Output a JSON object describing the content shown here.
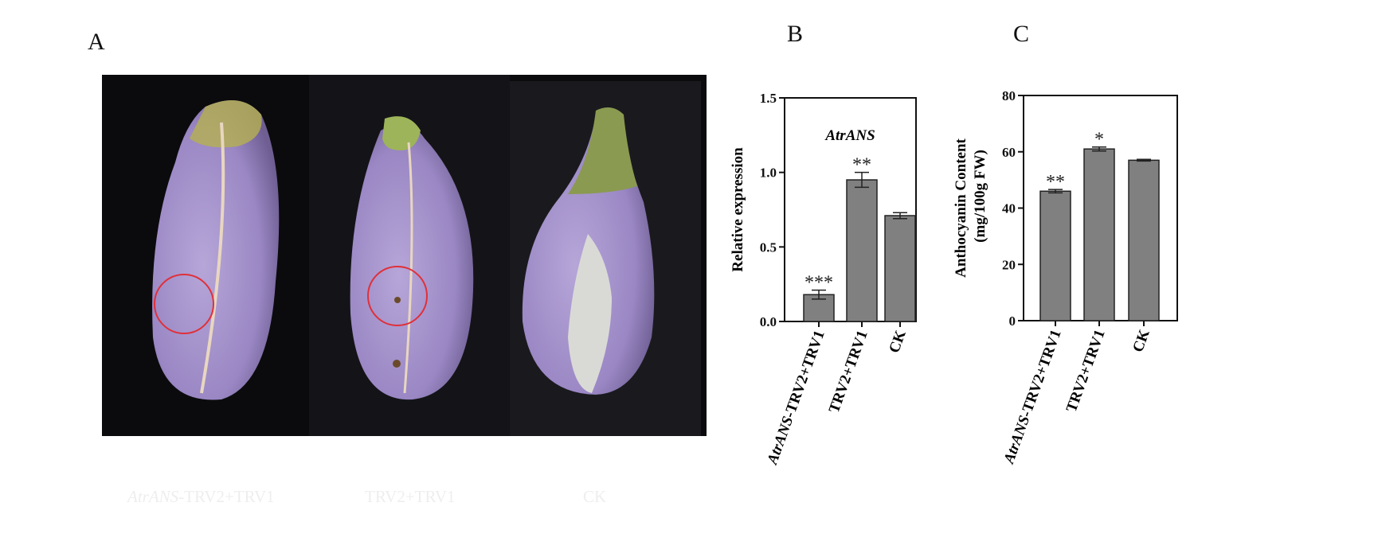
{
  "panels": {
    "a": "A",
    "b": "B",
    "c": "C"
  },
  "photo": {
    "labels": [
      {
        "italic": "AtrANS",
        "rest": "-TRV2+TRV1"
      },
      {
        "italic": "",
        "rest": "TRV2+TRV1"
      },
      {
        "italic": "",
        "rest": "CK"
      }
    ],
    "marker_color": "#e0303a"
  },
  "chart_data": [
    {
      "type": "bar",
      "title": "AtrANS",
      "ylabel": "Relative expression",
      "xlabel": "",
      "categories": [
        {
          "italic": "AtrANS",
          "rest": "-TRV2+TRV1"
        },
        {
          "italic": "",
          "rest": "TRV2+TRV1"
        },
        {
          "italic": "",
          "rest": "CK"
        }
      ],
      "values": [
        0.18,
        0.95,
        0.71
      ],
      "errors": [
        0.03,
        0.05,
        0.02
      ],
      "significance": [
        "***",
        "**",
        ""
      ],
      "ylim": [
        0,
        1.5
      ],
      "yticks": [
        "0.0",
        "0.5",
        "1.0",
        "1.5"
      ],
      "bar_color": "#808080",
      "grid": false
    },
    {
      "type": "bar",
      "title": "",
      "ylabel": "Anthocyanin Content",
      "ylabel2": "(mg/100g FW)",
      "xlabel": "",
      "categories": [
        {
          "italic": "AtrANS",
          "rest": "-TRV2+TRV1"
        },
        {
          "italic": "",
          "rest": "TRV2+TRV1"
        },
        {
          "italic": "",
          "rest": "CK"
        }
      ],
      "values": [
        46,
        61,
        57
      ],
      "errors": [
        0.6,
        0.7,
        0.3
      ],
      "significance": [
        "**",
        "*",
        ""
      ],
      "ylim": [
        0,
        80
      ],
      "yticks": [
        "0",
        "20",
        "40",
        "60",
        "80"
      ],
      "bar_color": "#808080",
      "grid": false
    }
  ]
}
